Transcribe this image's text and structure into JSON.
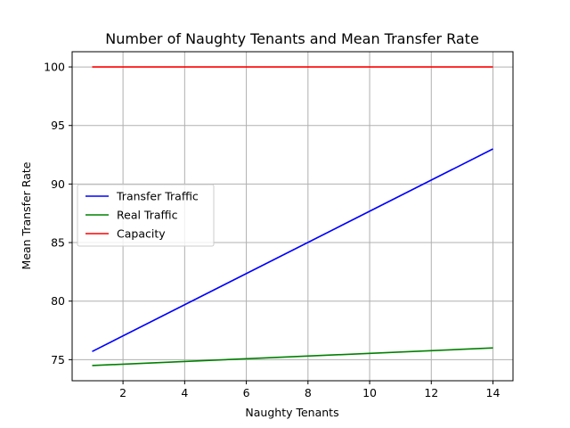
{
  "chart_data": {
    "type": "line",
    "title": "Number of Naughty Tenants and Mean Transfer Rate",
    "xlabel": "Naughty Tenants",
    "ylabel": "Mean Transfer Rate",
    "xlim": [
      0.35,
      14.65
    ],
    "ylim": [
      73.2,
      101.3
    ],
    "xticks": [
      2,
      4,
      6,
      8,
      10,
      12,
      14
    ],
    "yticks": [
      75,
      80,
      85,
      90,
      95,
      100
    ],
    "grid": true,
    "legend_position": "center-left",
    "series": [
      {
        "name": "Transfer Traffic",
        "color": "#0000ff",
        "x": [
          1,
          14
        ],
        "y": [
          75.7,
          93.0
        ]
      },
      {
        "name": "Real Traffic",
        "color": "#008000",
        "x": [
          1,
          14
        ],
        "y": [
          74.5,
          76.0
        ]
      },
      {
        "name": "Capacity",
        "color": "#ff0000",
        "x": [
          1,
          14
        ],
        "y": [
          100,
          100
        ]
      }
    ]
  }
}
